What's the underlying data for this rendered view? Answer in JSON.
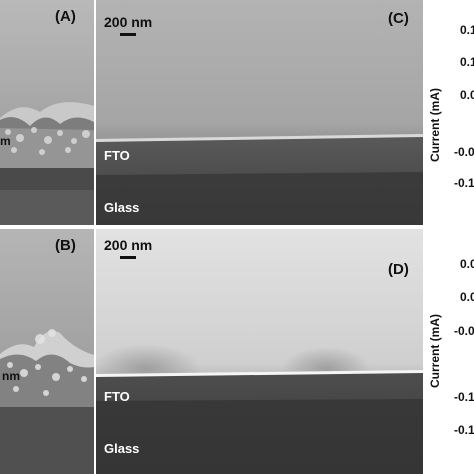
{
  "panels": {
    "a": {
      "label": "(A)",
      "thickness_label": "m"
    },
    "b": {
      "label": "(B)",
      "thickness_label": "nm"
    },
    "c": {
      "label": "(C)",
      "scale_label": "200 nm",
      "fto_label": "FTO",
      "glass_label": "Glass"
    },
    "d": {
      "label": "(D)",
      "scale_label": "200 nm",
      "fto_label": "FTO",
      "glass_label": "Glass"
    }
  },
  "plots": {
    "top": {
      "ylabel": "Current (mA)",
      "ticks": [
        "0.1",
        "0.1",
        "0.0",
        "-0.0",
        "-0.1"
      ]
    },
    "bottom": {
      "ylabel": "Current (mA)",
      "ticks": [
        "0.0",
        "0.0",
        "-0.0",
        "-0.1",
        "-0.1"
      ]
    }
  }
}
